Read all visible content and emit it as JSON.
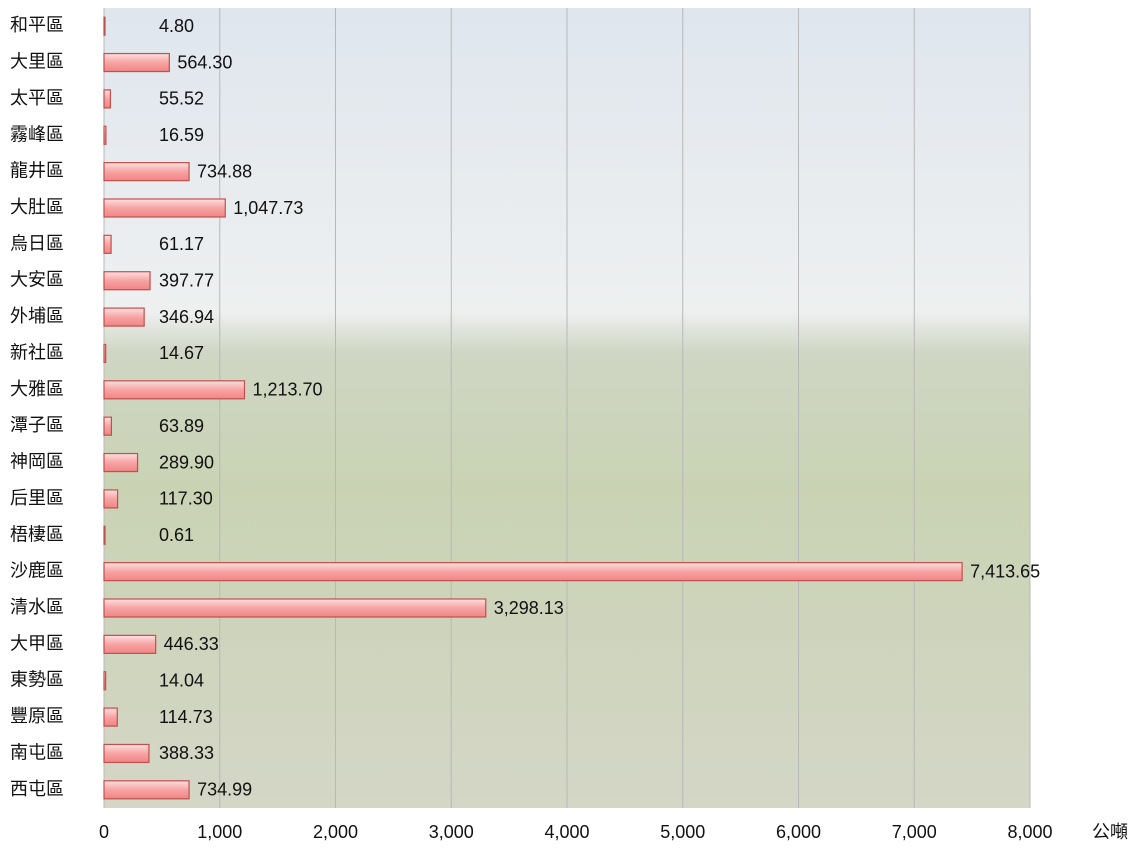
{
  "chart_data": {
    "type": "barh",
    "categories": [
      "和平區",
      "大里區",
      "太平區",
      "霧峰區",
      "龍井區",
      "大肚區",
      "烏日區",
      "大安區",
      "外埔區",
      "新社區",
      "大雅區",
      "潭子區",
      "神岡區",
      "后里區",
      "梧棲區",
      "沙鹿區",
      "清水區",
      "大甲區",
      "東勢區",
      "豐原區",
      "南屯區",
      "西屯區"
    ],
    "values": [
      4.8,
      564.3,
      55.52,
      16.59,
      734.88,
      1047.73,
      61.17,
      397.77,
      346.94,
      14.67,
      1213.7,
      63.89,
      289.9,
      117.3,
      0.61,
      7413.65,
      3298.13,
      446.33,
      14.04,
      114.73,
      388.33,
      734.99
    ],
    "value_labels": [
      "4.80",
      "564.30",
      "55.52",
      "16.59",
      "734.88",
      "1,047.73",
      "61.17",
      "397.77",
      "346.94",
      "14.67",
      "1,213.70",
      "63.89",
      "289.90",
      "117.30",
      "0.61",
      "7,413.65",
      "3,298.13",
      "446.33",
      "14.04",
      "114.73",
      "388.33",
      "734.99"
    ],
    "color": "#f7a3a3",
    "edge_color": "#c0504d",
    "xlabel": "公噸",
    "xlim": [
      0,
      8000
    ],
    "xticks": [
      0,
      {
        "value": 1000,
        "label": "1,000"
      },
      {
        "value": 2000,
        "label": "2,000"
      },
      {
        "value": 3000,
        "label": "3,000"
      },
      {
        "value": 4000,
        "label": "4,000"
      },
      {
        "value": 5000,
        "label": "5,000"
      },
      {
        "value": 6000,
        "label": "6,000"
      },
      {
        "value": 7000,
        "label": "7,000"
      },
      {
        "value": 8000,
        "label": "8,000"
      }
    ],
    "grid": true
  }
}
